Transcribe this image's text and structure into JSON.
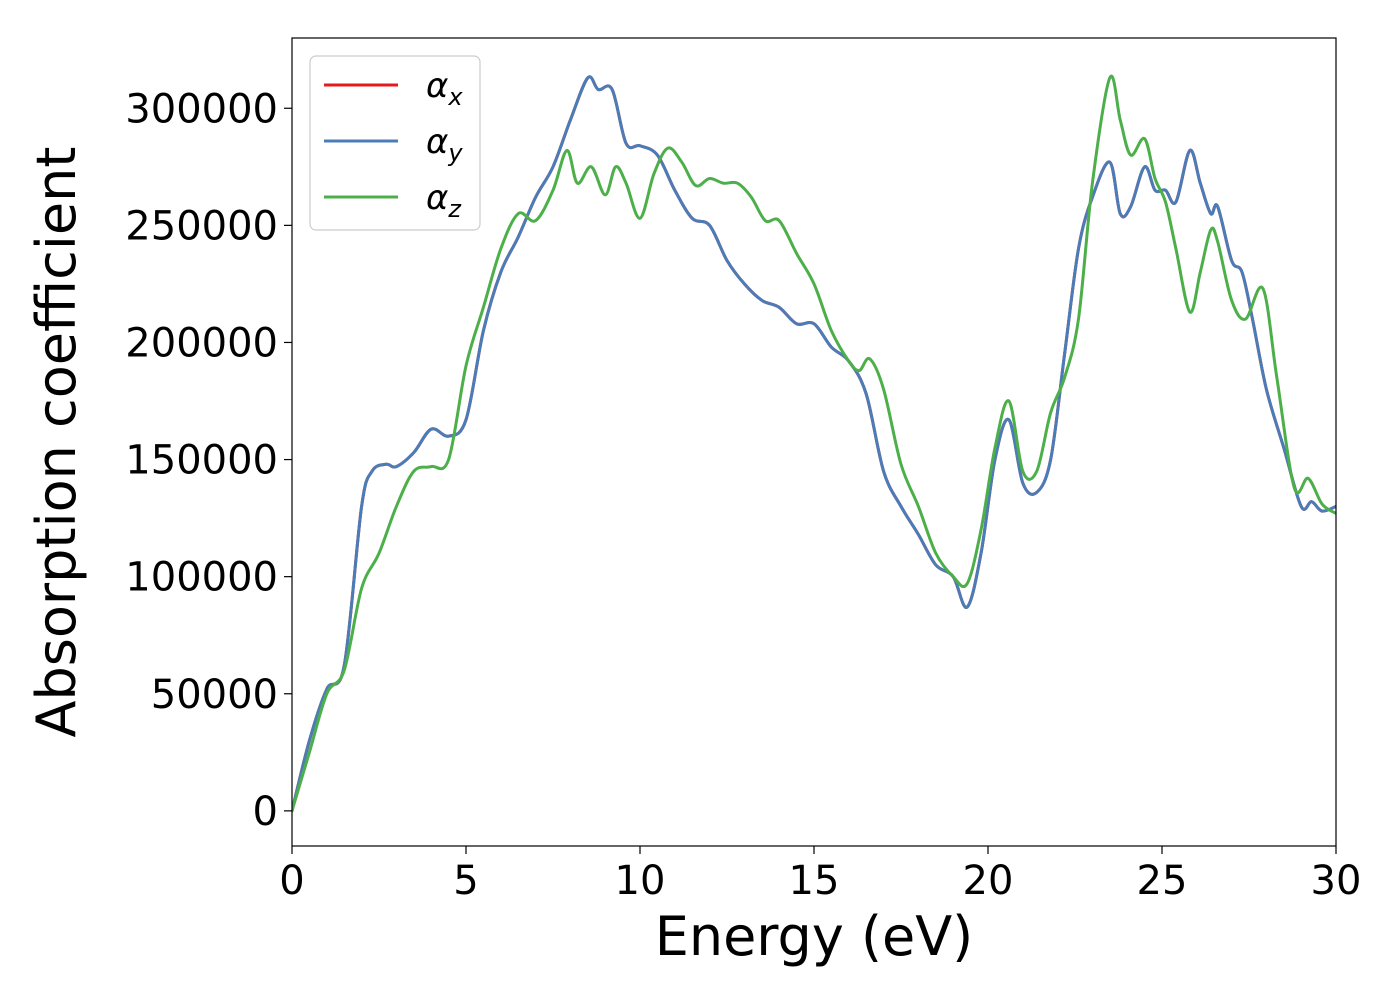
{
  "chart_data": {
    "type": "line",
    "xlabel": "Energy (eV)",
    "ylabel": "Absorption coefficient",
    "xlim": [
      0,
      30
    ],
    "ylim": [
      -15000,
      330000
    ],
    "xticks": [
      0,
      5,
      10,
      15,
      20,
      25,
      30
    ],
    "yticks": [
      0,
      50000,
      100000,
      150000,
      200000,
      250000,
      300000
    ],
    "grid": false,
    "legend_position": "top-left",
    "series": [
      {
        "name": "α_x",
        "name_base": "α",
        "name_sub": "x",
        "color": "#e41a1c",
        "x": [
          0,
          0.5,
          1.0,
          1.5,
          2.0,
          2.3,
          2.7,
          3.0,
          3.5,
          4.0,
          4.5,
          5.0,
          5.5,
          6.0,
          6.5,
          7.0,
          7.5,
          8.0,
          8.5,
          8.8,
          9.2,
          9.6,
          10.0,
          10.5,
          11.0,
          11.5,
          12.0,
          12.5,
          13.0,
          13.5,
          14.0,
          14.5,
          15.0,
          15.5,
          16.0,
          16.5,
          17.0,
          17.5,
          18.0,
          18.5,
          19.0,
          19.4,
          19.8,
          20.2,
          20.6,
          21.0,
          21.4,
          21.8,
          22.2,
          22.6,
          23.0,
          23.5,
          23.8,
          24.1,
          24.5,
          24.8,
          25.1,
          25.4,
          25.8,
          26.1,
          26.4,
          26.6,
          27.0,
          27.3,
          27.6,
          28.0,
          28.5,
          29.0,
          29.3,
          29.6,
          30.0
        ],
        "y": [
          0,
          30000,
          52000,
          62000,
          130000,
          145000,
          148000,
          147000,
          153000,
          163000,
          160000,
          167000,
          205000,
          230000,
          245000,
          262000,
          275000,
          295000,
          313000,
          308000,
          308000,
          285000,
          284000,
          280000,
          265000,
          253000,
          250000,
          235000,
          225000,
          218000,
          215000,
          208000,
          208000,
          198000,
          192000,
          178000,
          145000,
          130000,
          118000,
          105000,
          100000,
          87000,
          110000,
          150000,
          167000,
          140000,
          136000,
          150000,
          195000,
          240000,
          262000,
          277000,
          255000,
          258000,
          275000,
          265000,
          265000,
          260000,
          282000,
          268000,
          255000,
          258000,
          235000,
          230000,
          210000,
          180000,
          155000,
          130000,
          132000,
          128000,
          130000
        ]
      },
      {
        "name": "α_y",
        "name_base": "α",
        "name_sub": "y",
        "color": "#4a7db8",
        "x": [
          0,
          0.5,
          1.0,
          1.5,
          2.0,
          2.3,
          2.7,
          3.0,
          3.5,
          4.0,
          4.5,
          5.0,
          5.5,
          6.0,
          6.5,
          7.0,
          7.5,
          8.0,
          8.5,
          8.8,
          9.2,
          9.6,
          10.0,
          10.5,
          11.0,
          11.5,
          12.0,
          12.5,
          13.0,
          13.5,
          14.0,
          14.5,
          15.0,
          15.5,
          16.0,
          16.5,
          17.0,
          17.5,
          18.0,
          18.5,
          19.0,
          19.4,
          19.8,
          20.2,
          20.6,
          21.0,
          21.4,
          21.8,
          22.2,
          22.6,
          23.0,
          23.5,
          23.8,
          24.1,
          24.5,
          24.8,
          25.1,
          25.4,
          25.8,
          26.1,
          26.4,
          26.6,
          27.0,
          27.3,
          27.6,
          28.0,
          28.5,
          29.0,
          29.3,
          29.6,
          30.0
        ],
        "y": [
          0,
          30000,
          52000,
          62000,
          130000,
          145000,
          148000,
          147000,
          153000,
          163000,
          160000,
          167000,
          205000,
          230000,
          245000,
          262000,
          275000,
          295000,
          313000,
          308000,
          308000,
          285000,
          284000,
          280000,
          265000,
          253000,
          250000,
          235000,
          225000,
          218000,
          215000,
          208000,
          208000,
          198000,
          192000,
          178000,
          145000,
          130000,
          118000,
          105000,
          100000,
          87000,
          110000,
          150000,
          167000,
          140000,
          136000,
          150000,
          195000,
          240000,
          262000,
          277000,
          255000,
          258000,
          275000,
          265000,
          265000,
          260000,
          282000,
          268000,
          255000,
          258000,
          235000,
          230000,
          210000,
          180000,
          155000,
          130000,
          132000,
          128000,
          130000
        ]
      },
      {
        "name": "α_z",
        "name_base": "α",
        "name_sub": "z",
        "color": "#4daf4a",
        "x": [
          0,
          0.5,
          1.0,
          1.5,
          2.0,
          2.5,
          3.0,
          3.5,
          4.0,
          4.5,
          5.0,
          5.5,
          6.0,
          6.5,
          7.0,
          7.5,
          7.9,
          8.2,
          8.6,
          9.0,
          9.3,
          9.6,
          10.0,
          10.4,
          10.8,
          11.2,
          11.6,
          12.0,
          12.4,
          12.8,
          13.2,
          13.6,
          14.0,
          14.5,
          15.0,
          15.5,
          16.0,
          16.3,
          16.6,
          17.0,
          17.5,
          18.0,
          18.5,
          19.0,
          19.4,
          19.8,
          20.2,
          20.6,
          21.0,
          21.4,
          21.8,
          22.2,
          22.6,
          23.0,
          23.5,
          23.8,
          24.1,
          24.5,
          24.8,
          25.1,
          25.4,
          25.8,
          26.1,
          26.4,
          26.6,
          27.0,
          27.4,
          27.9,
          28.3,
          28.8,
          29.2,
          29.6,
          30.0
        ],
        "y": [
          0,
          25000,
          50000,
          60000,
          95000,
          110000,
          130000,
          145000,
          147000,
          150000,
          190000,
          215000,
          240000,
          255000,
          252000,
          265000,
          282000,
          268000,
          275000,
          263000,
          275000,
          268000,
          253000,
          272000,
          283000,
          277000,
          267000,
          270000,
          268000,
          268000,
          262000,
          252000,
          252000,
          238000,
          225000,
          205000,
          192000,
          188000,
          193000,
          180000,
          148000,
          130000,
          110000,
          100000,
          97000,
          120000,
          155000,
          175000,
          145000,
          145000,
          170000,
          185000,
          210000,
          268000,
          313000,
          295000,
          280000,
          287000,
          270000,
          260000,
          240000,
          213000,
          230000,
          248000,
          243000,
          218000,
          210000,
          223000,
          185000,
          138000,
          142000,
          131000,
          127000
        ]
      }
    ]
  }
}
